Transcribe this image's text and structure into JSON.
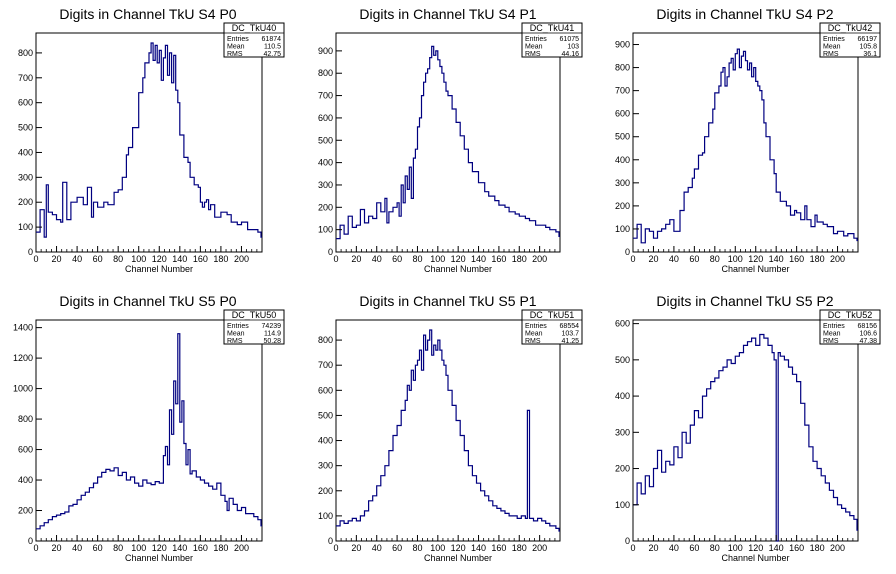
{
  "colors": {
    "line": "#000080",
    "frame": "#000000",
    "background": "#ffffff"
  },
  "chart_data": [
    {
      "type": "line",
      "title": "Digits in Channel TkU S4 P0",
      "xlabel": "Channel Number",
      "ylabel": "",
      "xlim": [
        0,
        220
      ],
      "ylim": [
        0,
        880
      ],
      "xticks": [
        0,
        20,
        40,
        60,
        80,
        100,
        120,
        140,
        160,
        180,
        200
      ],
      "yticks": [
        100,
        200,
        300,
        400,
        500,
        600,
        700,
        800
      ],
      "stats": {
        "name": "DC_TkU40",
        "entries": "61874",
        "mean": "110.5",
        "rms": "42.75"
      },
      "x": [
        0,
        4,
        8,
        10,
        12,
        16,
        20,
        24,
        26,
        30,
        34,
        40,
        46,
        50,
        54,
        56,
        60,
        66,
        70,
        76,
        80,
        84,
        88,
        90,
        94,
        100,
        104,
        106,
        110,
        112,
        114,
        116,
        118,
        120,
        122,
        124,
        126,
        128,
        130,
        132,
        134,
        136,
        138,
        140,
        144,
        148,
        150,
        154,
        158,
        160,
        162,
        164,
        166,
        168,
        170,
        174,
        180,
        186,
        190,
        196,
        200,
        206,
        210,
        216,
        219
      ],
      "values": [
        80,
        170,
        60,
        270,
        160,
        150,
        130,
        120,
        280,
        130,
        200,
        220,
        190,
        260,
        140,
        200,
        180,
        200,
        190,
        240,
        250,
        300,
        390,
        420,
        500,
        640,
        700,
        760,
        800,
        840,
        770,
        830,
        760,
        810,
        690,
        780,
        830,
        710,
        800,
        680,
        790,
        650,
        600,
        470,
        380,
        360,
        300,
        270,
        260,
        200,
        180,
        200,
        210,
        170,
        190,
        140,
        160,
        150,
        120,
        110,
        120,
        90,
        90,
        80,
        60
      ]
    },
    {
      "type": "line",
      "title": "Digits in Channel TkU S4 P1",
      "xlabel": "Channel Number",
      "ylabel": "",
      "xlim": [
        0,
        220
      ],
      "ylim": [
        0,
        980
      ],
      "xticks": [
        0,
        20,
        40,
        60,
        80,
        100,
        120,
        140,
        160,
        180,
        200
      ],
      "yticks": [
        100,
        200,
        300,
        400,
        500,
        600,
        700,
        800,
        900
      ],
      "stats": {
        "name": "DC_TkU41",
        "entries": "61075",
        "mean": "103",
        "rms": "44.16"
      },
      "x": [
        0,
        4,
        8,
        12,
        16,
        20,
        24,
        28,
        32,
        36,
        40,
        44,
        48,
        50,
        52,
        56,
        60,
        62,
        64,
        66,
        68,
        70,
        72,
        74,
        76,
        78,
        80,
        82,
        84,
        86,
        88,
        90,
        92,
        94,
        96,
        98,
        100,
        102,
        104,
        106,
        108,
        110,
        114,
        118,
        122,
        126,
        130,
        134,
        140,
        146,
        150,
        156,
        160,
        166,
        170,
        176,
        180,
        186,
        190,
        196,
        200,
        206,
        210,
        216,
        219
      ],
      "values": [
        60,
        120,
        80,
        160,
        110,
        120,
        190,
        130,
        160,
        150,
        220,
        180,
        240,
        130,
        180,
        200,
        220,
        160,
        300,
        220,
        340,
        280,
        380,
        240,
        420,
        460,
        560,
        600,
        700,
        760,
        800,
        820,
        870,
        920,
        880,
        900,
        860,
        830,
        800,
        760,
        720,
        700,
        640,
        580,
        520,
        460,
        400,
        360,
        310,
        270,
        250,
        230,
        210,
        200,
        180,
        170,
        160,
        150,
        140,
        120,
        120,
        110,
        100,
        90,
        70
      ]
    },
    {
      "type": "line",
      "title": "Digits in Channel TkU S4 P2",
      "xlabel": "Channel Number",
      "ylabel": "",
      "xlim": [
        0,
        220
      ],
      "ylim": [
        0,
        950
      ],
      "xticks": [
        0,
        20,
        40,
        60,
        80,
        100,
        120,
        140,
        160,
        180,
        200
      ],
      "yticks": [
        100,
        200,
        300,
        400,
        500,
        600,
        700,
        800,
        900
      ],
      "stats": {
        "name": "DC_TkU42",
        "entries": "66197",
        "mean": "105.8",
        "rms": "36.1"
      },
      "x": [
        0,
        4,
        8,
        12,
        16,
        20,
        24,
        28,
        32,
        36,
        40,
        46,
        50,
        54,
        58,
        60,
        64,
        68,
        70,
        74,
        78,
        80,
        84,
        86,
        88,
        90,
        92,
        94,
        96,
        98,
        100,
        102,
        104,
        106,
        108,
        110,
        112,
        114,
        116,
        118,
        120,
        122,
        124,
        126,
        128,
        130,
        134,
        138,
        140,
        144,
        148,
        150,
        154,
        158,
        160,
        164,
        168,
        170,
        174,
        178,
        180,
        186,
        190,
        196,
        200,
        206,
        210,
        216,
        219
      ],
      "values": [
        60,
        120,
        40,
        100,
        90,
        60,
        90,
        100,
        120,
        140,
        90,
        180,
        260,
        280,
        320,
        360,
        420,
        430,
        500,
        560,
        620,
        690,
        720,
        780,
        800,
        720,
        760,
        820,
        840,
        790,
        860,
        880,
        800,
        850,
        870,
        830,
        790,
        820,
        760,
        800,
        740,
        720,
        700,
        660,
        560,
        500,
        400,
        340,
        260,
        220,
        220,
        200,
        160,
        180,
        170,
        140,
        200,
        140,
        110,
        160,
        130,
        120,
        110,
        80,
        90,
        70,
        80,
        60,
        50
      ]
    },
    {
      "type": "line",
      "title": "Digits in Channel TkU S5 P0",
      "xlabel": "Channel Number",
      "ylabel": "",
      "xlim": [
        0,
        220
      ],
      "ylim": [
        0,
        1450
      ],
      "xticks": [
        0,
        20,
        40,
        60,
        80,
        100,
        120,
        140,
        160,
        180,
        200
      ],
      "yticks": [
        200,
        400,
        600,
        800,
        1000,
        1200,
        1400
      ],
      "stats": {
        "name": "DC_TkU50",
        "entries": "74239",
        "mean": "114.9",
        "rms": "50.28"
      },
      "x": [
        0,
        4,
        8,
        12,
        16,
        20,
        24,
        28,
        32,
        36,
        40,
        44,
        48,
        52,
        56,
        60,
        64,
        68,
        72,
        76,
        80,
        84,
        88,
        92,
        96,
        100,
        104,
        108,
        112,
        116,
        120,
        124,
        126,
        128,
        130,
        132,
        134,
        136,
        138,
        140,
        142,
        144,
        146,
        148,
        150,
        152,
        156,
        160,
        164,
        168,
        172,
        176,
        180,
        184,
        186,
        188,
        192,
        196,
        200,
        204,
        208,
        212,
        216,
        219
      ],
      "values": [
        80,
        100,
        120,
        140,
        160,
        170,
        180,
        190,
        230,
        240,
        270,
        300,
        320,
        350,
        380,
        420,
        450,
        470,
        460,
        480,
        430,
        450,
        400,
        420,
        380,
        360,
        400,
        380,
        370,
        390,
        380,
        560,
        620,
        500,
        860,
        700,
        1050,
        900,
        1360,
        780,
        920,
        640,
        500,
        600,
        440,
        460,
        420,
        400,
        380,
        360,
        340,
        380,
        300,
        260,
        200,
        280,
        240,
        200,
        220,
        180,
        180,
        160,
        140,
        100
      ]
    },
    {
      "type": "line",
      "title": "Digits in Channel TkU S5 P1",
      "xlabel": "Channel Number",
      "ylabel": "",
      "xlim": [
        0,
        220
      ],
      "ylim": [
        0,
        880
      ],
      "xticks": [
        0,
        20,
        40,
        60,
        80,
        100,
        120,
        140,
        160,
        180,
        200
      ],
      "yticks": [
        100,
        200,
        300,
        400,
        500,
        600,
        700,
        800
      ],
      "stats": {
        "name": "DC_TkU51",
        "entries": "68554",
        "mean": "103.7",
        "rms": "41.25"
      },
      "x": [
        0,
        4,
        8,
        12,
        16,
        20,
        24,
        28,
        32,
        36,
        40,
        44,
        48,
        52,
        56,
        60,
        64,
        68,
        70,
        72,
        74,
        76,
        78,
        80,
        82,
        84,
        86,
        88,
        90,
        92,
        94,
        96,
        98,
        100,
        102,
        104,
        106,
        108,
        110,
        114,
        118,
        122,
        126,
        130,
        134,
        138,
        142,
        146,
        150,
        154,
        158,
        162,
        166,
        170,
        174,
        178,
        182,
        186,
        188,
        190,
        194,
        198,
        202,
        206,
        210,
        216,
        219
      ],
      "values": [
        60,
        80,
        70,
        80,
        90,
        80,
        100,
        120,
        160,
        180,
        220,
        260,
        300,
        360,
        420,
        460,
        520,
        560,
        620,
        600,
        680,
        640,
        700,
        720,
        760,
        680,
        820,
        760,
        800,
        840,
        740,
        780,
        760,
        800,
        760,
        720,
        700,
        660,
        600,
        540,
        480,
        420,
        360,
        300,
        260,
        230,
        200,
        180,
        160,
        140,
        130,
        120,
        110,
        100,
        100,
        90,
        100,
        90,
        520,
        90,
        80,
        90,
        80,
        70,
        60,
        50,
        40
      ]
    },
    {
      "type": "line",
      "title": "Digits in Channel TkU S5 P2",
      "xlabel": "Channel Number",
      "ylabel": "",
      "xlim": [
        0,
        220
      ],
      "ylim": [
        0,
        610
      ],
      "xticks": [
        0,
        20,
        40,
        60,
        80,
        100,
        120,
        140,
        160,
        180,
        200
      ],
      "yticks": [
        100,
        200,
        300,
        400,
        500,
        600
      ],
      "stats": {
        "name": "DC_TkU52",
        "entries": "68156",
        "mean": "106.6",
        "rms": "47.38"
      },
      "x": [
        0,
        4,
        8,
        12,
        16,
        20,
        24,
        28,
        32,
        36,
        40,
        44,
        48,
        52,
        56,
        60,
        64,
        68,
        72,
        76,
        80,
        84,
        88,
        92,
        96,
        100,
        104,
        108,
        112,
        116,
        120,
        124,
        128,
        132,
        136,
        138,
        140,
        142,
        144,
        148,
        152,
        156,
        160,
        164,
        168,
        172,
        176,
        180,
        184,
        188,
        192,
        196,
        200,
        204,
        208,
        212,
        216,
        219
      ],
      "values": [
        100,
        160,
        130,
        180,
        150,
        200,
        250,
        190,
        220,
        210,
        260,
        230,
        300,
        270,
        320,
        360,
        340,
        400,
        420,
        440,
        450,
        470,
        480,
        500,
        490,
        510,
        520,
        540,
        550,
        560,
        540,
        570,
        560,
        540,
        520,
        500,
        0,
        520,
        510,
        500,
        480,
        460,
        440,
        380,
        320,
        260,
        220,
        200,
        180,
        160,
        140,
        120,
        100,
        90,
        80,
        70,
        60,
        30
      ]
    }
  ]
}
